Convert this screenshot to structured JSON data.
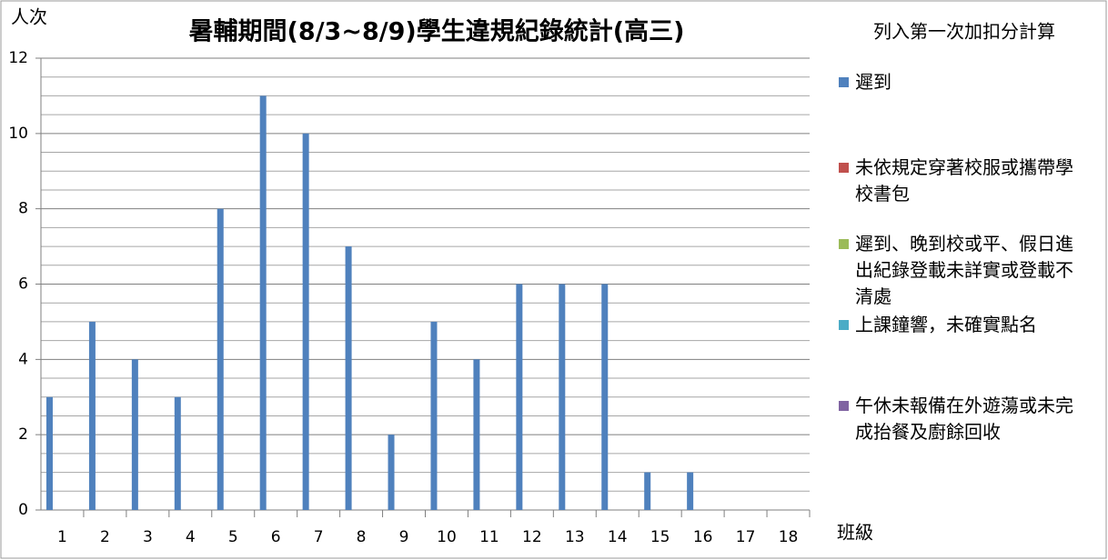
{
  "chart_data": {
    "type": "bar",
    "title": "暑輔期間(8/3~8/9)學生違規紀錄統計(高三)",
    "y_label": "人次",
    "x_label": "班級",
    "legend_title": "列入第一次加扣分計算",
    "legend_position": "right",
    "categories": [
      "1",
      "2",
      "3",
      "4",
      "5",
      "6",
      "7",
      "8",
      "9",
      "10",
      "11",
      "12",
      "13",
      "14",
      "15",
      "16",
      "17",
      "18"
    ],
    "series": [
      {
        "name": "遲到",
        "color": "#4f81bd",
        "values": [
          3,
          5,
          4,
          3,
          8,
          11,
          10,
          7,
          2,
          5,
          4,
          6,
          6,
          6,
          1,
          1,
          0,
          0
        ]
      },
      {
        "name": "未依規定穿著校服或攜帶學校書包",
        "color": "#c0504d",
        "values": [
          0,
          0,
          0,
          0,
          0,
          0,
          0,
          0,
          0,
          0,
          0,
          0,
          0,
          0,
          0,
          0,
          0,
          0
        ]
      },
      {
        "name": "遲到、晚到校或平、假日進出紀錄登載未詳實或登載不清處",
        "color": "#9bbb59",
        "values": [
          0,
          0,
          0,
          0,
          0,
          0,
          0,
          0,
          0,
          0,
          0,
          0,
          0,
          0,
          0,
          0,
          0,
          0
        ]
      },
      {
        "name": "上課鐘響，未確實點名",
        "color": "#4bacc6",
        "values": [
          0,
          0,
          0,
          0,
          0,
          0,
          0,
          0,
          0,
          0,
          0,
          0,
          0,
          0,
          0,
          0,
          0,
          0
        ]
      },
      {
        "name": "午休未報備在外遊蕩或未完成抬餐及廚餘回收",
        "color": "#8064a2",
        "values": [
          0,
          0,
          0,
          0,
          0,
          0,
          0,
          0,
          0,
          0,
          0,
          0,
          0,
          0,
          0,
          0,
          0,
          0
        ]
      }
    ],
    "ylim": [
      0,
      12
    ],
    "yticks": [
      0,
      2,
      4,
      6,
      8,
      10,
      12
    ],
    "grid": true,
    "minor_grid": [
      0.5,
      1,
      1.5,
      2.5,
      3,
      3.5,
      4.5,
      5,
      5.5,
      6.5,
      7,
      7.5,
      8.5,
      9,
      9.5,
      10.5,
      11,
      11.5
    ]
  }
}
